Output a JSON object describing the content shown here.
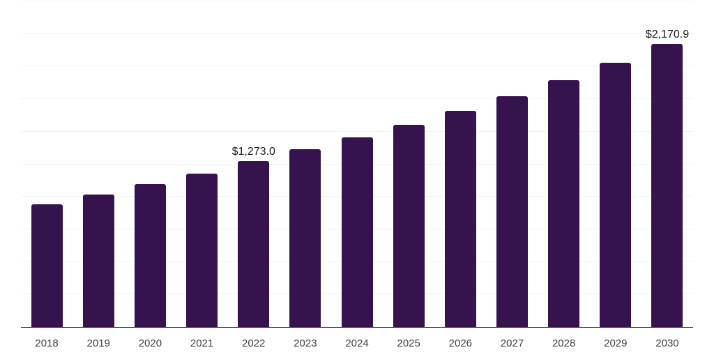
{
  "chart_data": {
    "type": "bar",
    "categories": [
      "2018",
      "2019",
      "2020",
      "2021",
      "2022",
      "2023",
      "2024",
      "2025",
      "2026",
      "2027",
      "2028",
      "2029",
      "2030"
    ],
    "values": [
      943,
      1018,
      1100,
      1180,
      1273.0,
      1364,
      1458,
      1554,
      1658,
      1770,
      1895,
      2029,
      2170.9
    ],
    "value_labels": [
      "",
      "",
      "",
      "",
      "$1,273.0",
      "",
      "",
      "",
      "",
      "",
      "",
      "",
      "$2,170.9"
    ],
    "labeled_points": [
      {
        "category": "2022",
        "label": "$1,273.0",
        "value": 1273.0
      },
      {
        "category": "2030",
        "label": "$2,170.9",
        "value": 2170.9
      }
    ],
    "ylim": [
      0,
      2500
    ],
    "grid_interval": 250,
    "grid": true,
    "legend": false,
    "colors": {
      "bar": "#36134f",
      "grid": "#f3f3f3",
      "axis": "#333333",
      "tick_text": "#404040",
      "value_text": "#1a1a1a",
      "background": "#ffffff"
    }
  }
}
